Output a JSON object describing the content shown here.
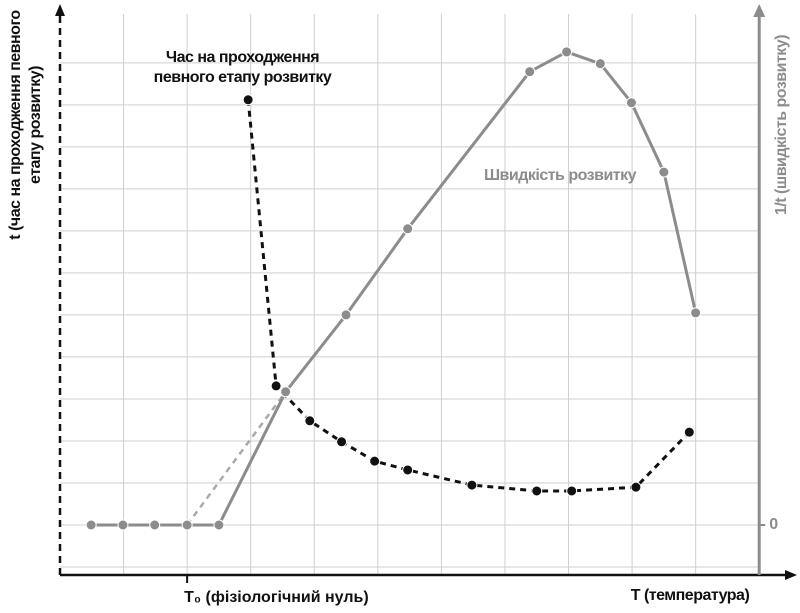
{
  "chart_data": {
    "type": "line",
    "x_label": "T (температура)",
    "y_label": "t (час на проходження певного етапу розвитку)",
    "y2_label": "1/t (швидкість розвитку)",
    "xlim": [
      0,
      11.5
    ],
    "xticks": [
      {
        "value": 2,
        "label": "T₀ (фізіологічний нуль)"
      }
    ],
    "ylim": [
      -1.19,
      12.4
    ],
    "y2lim": [
      -1.19,
      12.4
    ],
    "y2ticks": [
      0
    ],
    "grid": true,
    "series": [
      {
        "name": "Час на проходження певного етапу розвитку",
        "color": "#111111",
        "dashed": true,
        "x": [
          2.96,
          3.4,
          3.93,
          4.43,
          4.95,
          5.47,
          6.48,
          7.5,
          8.05,
          9.06,
          9.9
        ],
        "values": [
          10.12,
          3.31,
          2.48,
          1.98,
          1.52,
          1.31,
          0.95,
          0.81,
          0.81,
          0.9,
          2.21
        ]
      },
      {
        "name": "Швидкість розвитку",
        "color": "#8c8c8c",
        "axis": "y2",
        "dashed": false,
        "x": [
          0.49,
          0.99,
          1.49,
          2.0,
          2.5,
          3.55,
          4.5,
          5.47,
          7.39,
          7.97,
          8.5,
          8.99,
          9.5,
          10.0
        ],
        "values": [
          0,
          0,
          0,
          0,
          0,
          3.17,
          5.0,
          7.05,
          10.79,
          11.26,
          10.98,
          10.05,
          8.4,
          5.05
        ]
      }
    ]
  }
}
